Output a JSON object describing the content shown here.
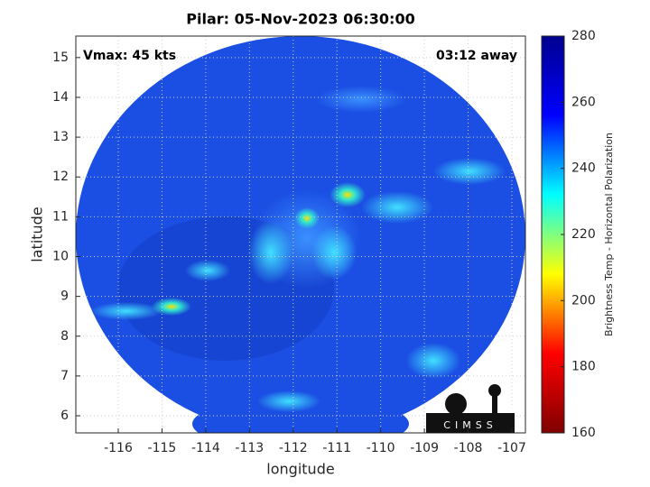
{
  "chart_data": {
    "type": "heatmap",
    "title": "Pilar: 05-Nov-2023 06:30:00",
    "xlabel": "longitude",
    "ylabel": "latitude",
    "annotations": [
      "Vmax: 45 kts",
      "03:12 away"
    ],
    "logo_text": "CIMSS",
    "xlim": [
      -116.97,
      -106.69
    ],
    "ylim": [
      5.57,
      15.54
    ],
    "xticks": [
      -116,
      -115,
      -114,
      -113,
      -112,
      -111,
      -110,
      -109,
      -108,
      -107
    ],
    "yticks": [
      6,
      7,
      8,
      9,
      10,
      11,
      12,
      13,
      14,
      15
    ],
    "grid": true,
    "colorbar": {
      "label": "Brightness Temp - Horizontal Polarization",
      "lim": [
        160,
        280
      ],
      "ticks": [
        160,
        180,
        200,
        220,
        240,
        260,
        280
      ],
      "colormap": [
        "#800000",
        "#ff0000",
        "#ffff00",
        "#00ffff",
        "#0000ff",
        "#00008f"
      ]
    }
  }
}
